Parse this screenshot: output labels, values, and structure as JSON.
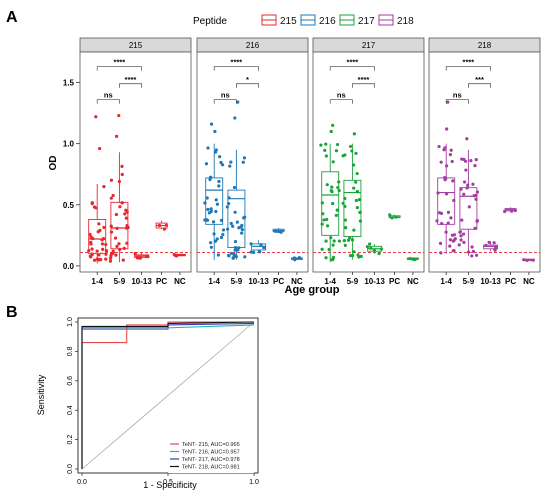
{
  "panel_a": {
    "label": "A",
    "legend_title": "Peptide",
    "ylabel": "OD",
    "xlabel": "Age group"
  },
  "panel_b": {
    "label": "B",
    "ylabel": "Sensitivity",
    "xlabel": "1 - Specificity"
  },
  "chart_data": [
    {
      "type": "boxplot",
      "legend_title": "Peptide",
      "legend": [
        "215",
        "216",
        "217",
        "218"
      ],
      "facets": [
        "215",
        "216",
        "217",
        "218"
      ],
      "categories": [
        "1-4",
        "5-9",
        "10-13",
        "PC",
        "NC"
      ],
      "xlabel": "Age group",
      "ylabel": "OD",
      "ylim": [
        -0.05,
        1.75
      ],
      "yticks": [
        0.0,
        0.5,
        1.0,
        1.5
      ],
      "cutoff_line": 0.11,
      "colors": {
        "215": "#e8262b",
        "216": "#1f78b4",
        "217": "#1aa33a",
        "218": "#a23ea0"
      },
      "series": [
        {
          "name": "215",
          "boxes": [
            {
              "category": "1-4",
              "min": 0.02,
              "q1": 0.1,
              "median": 0.22,
              "q3": 0.38,
              "max": 0.67
            },
            {
              "category": "5-9",
              "min": 0.03,
              "q1": 0.14,
              "median": 0.31,
              "q3": 0.52,
              "max": 0.93
            },
            {
              "category": "10-13",
              "min": 0.06,
              "q1": 0.07,
              "median": 0.08,
              "q3": 0.09,
              "max": 0.11
            },
            {
              "category": "PC",
              "min": 0.3,
              "q1": 0.31,
              "median": 0.33,
              "q3": 0.35,
              "max": 0.37
            },
            {
              "category": "NC",
              "min": 0.08,
              "q1": 0.085,
              "median": 0.09,
              "q3": 0.095,
              "max": 0.1
            }
          ]
        },
        {
          "name": "216",
          "boxes": [
            {
              "category": "1-4",
              "min": 0.05,
              "q1": 0.34,
              "median": 0.62,
              "q3": 0.72,
              "max": 1.0
            },
            {
              "category": "5-9",
              "min": 0.05,
              "q1": 0.15,
              "median": 0.55,
              "q3": 0.62,
              "max": 0.95
            },
            {
              "category": "10-13",
              "min": 0.11,
              "q1": 0.13,
              "median": 0.16,
              "q3": 0.18,
              "max": 0.21
            },
            {
              "category": "PC",
              "min": 0.27,
              "q1": 0.28,
              "median": 0.29,
              "q3": 0.3,
              "max": 0.31
            },
            {
              "category": "NC",
              "min": 0.05,
              "q1": 0.055,
              "median": 0.06,
              "q3": 0.065,
              "max": 0.07
            }
          ]
        },
        {
          "name": "217",
          "boxes": [
            {
              "category": "1-4",
              "min": 0.03,
              "q1": 0.25,
              "median": 0.58,
              "q3": 0.77,
              "max": 1.0
            },
            {
              "category": "5-9",
              "min": 0.05,
              "q1": 0.24,
              "median": 0.6,
              "q3": 0.7,
              "max": 1.0
            },
            {
              "category": "10-13",
              "min": 0.1,
              "q1": 0.12,
              "median": 0.14,
              "q3": 0.16,
              "max": 0.18
            },
            {
              "category": "PC",
              "min": 0.39,
              "q1": 0.395,
              "median": 0.4,
              "q3": 0.41,
              "max": 0.42
            },
            {
              "category": "NC",
              "min": 0.05,
              "q1": 0.055,
              "median": 0.06,
              "q3": 0.065,
              "max": 0.07
            }
          ]
        },
        {
          "name": "218",
          "boxes": [
            {
              "category": "1-4",
              "min": 0.1,
              "q1": 0.34,
              "median": 0.6,
              "q3": 0.72,
              "max": 1.0
            },
            {
              "category": "5-9",
              "min": 0.08,
              "q1": 0.3,
              "median": 0.57,
              "q3": 0.64,
              "max": 0.95
            },
            {
              "category": "10-13",
              "min": 0.12,
              "q1": 0.14,
              "median": 0.16,
              "q3": 0.17,
              "max": 0.2
            },
            {
              "category": "PC",
              "min": 0.44,
              "q1": 0.45,
              "median": 0.46,
              "q3": 0.47,
              "max": 0.48
            },
            {
              "category": "NC",
              "min": 0.04,
              "q1": 0.045,
              "median": 0.05,
              "q3": 0.055,
              "max": 0.06
            }
          ]
        }
      ],
      "significance": [
        {
          "facet": "215",
          "comparisons": [
            {
              "from": "1-4",
              "to": "10-13",
              "label": "****"
            },
            {
              "from": "5-9",
              "to": "10-13",
              "label": "****"
            },
            {
              "from": "1-4",
              "to": "5-9",
              "label": "ns"
            }
          ]
        },
        {
          "facet": "216",
          "comparisons": [
            {
              "from": "1-4",
              "to": "10-13",
              "label": "****"
            },
            {
              "from": "5-9",
              "to": "10-13",
              "label": "*"
            },
            {
              "from": "1-4",
              "to": "5-9",
              "label": "ns"
            }
          ]
        },
        {
          "facet": "217",
          "comparisons": [
            {
              "from": "1-4",
              "to": "10-13",
              "label": "****"
            },
            {
              "from": "5-9",
              "to": "10-13",
              "label": "****"
            },
            {
              "from": "1-4",
              "to": "5-9",
              "label": "ns"
            }
          ]
        },
        {
          "facet": "218",
          "comparisons": [
            {
              "from": "1-4",
              "to": "10-13",
              "label": "****"
            },
            {
              "from": "5-9",
              "to": "10-13",
              "label": "***"
            },
            {
              "from": "1-4",
              "to": "5-9",
              "label": "ns"
            }
          ]
        }
      ]
    },
    {
      "type": "line",
      "xlabel": "1 - Specificity",
      "ylabel": "Sensitivity",
      "xlim": [
        0,
        1
      ],
      "ylim": [
        0,
        1
      ],
      "xticks": [
        0.0,
        0.5,
        1.0
      ],
      "yticks": [
        0.0,
        0.2,
        0.4,
        0.6,
        0.8,
        1.0
      ],
      "legend_position": "bottom-right",
      "series": [
        {
          "name": "TeNT- 215, AUC=0.965",
          "color": "#e8474a",
          "x": [
            0,
            0,
            0.26,
            0.26,
            0.5,
            0.5,
            1.0
          ],
          "y": [
            0,
            0.86,
            0.86,
            0.98,
            0.98,
            1.0,
            1.0
          ]
        },
        {
          "name": "TeNT- 216, AUC=0.957",
          "color": "#1fb5ad",
          "x": [
            0,
            0,
            0.5,
            0.5,
            1.0
          ],
          "y": [
            0,
            0.95,
            0.95,
            0.96,
            0.98
          ]
        },
        {
          "name": "TeNT- 217, AUC=0.978",
          "color": "#3a3ab8",
          "x": [
            0,
            0,
            0.5,
            0.5,
            1.0
          ],
          "y": [
            0,
            0.96,
            0.96,
            0.98,
            0.99
          ]
        },
        {
          "name": "TeNT- 218, AUC=0.981",
          "color": "#111111",
          "x": [
            0,
            0,
            0.5,
            0.5,
            1.0
          ],
          "y": [
            0,
            0.97,
            0.97,
            0.99,
            1.0
          ]
        }
      ],
      "reference_line": {
        "x": [
          0,
          1
        ],
        "y": [
          0,
          1
        ]
      }
    }
  ]
}
